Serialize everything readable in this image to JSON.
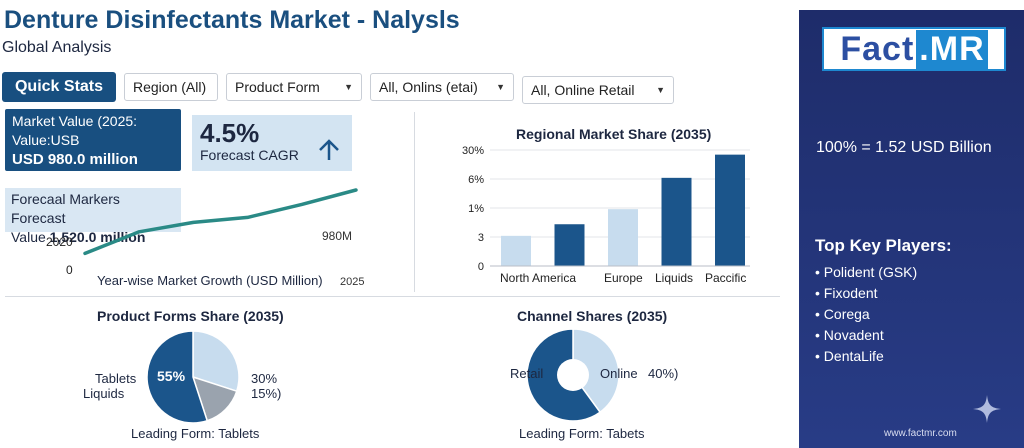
{
  "header": {
    "title": "Denture Disinfectants Market - Nalysls",
    "subtitle": "Global Analysis"
  },
  "toolbar": {
    "quick_stats": "Quick Stats",
    "filters": [
      {
        "label": "Region (All)",
        "has_caret": false
      },
      {
        "label": "Product Form",
        "has_caret": true
      },
      {
        "label": "All,  Onlins (etai)",
        "has_caret": true
      },
      {
        "label": "All,  Online  Retail",
        "has_caret": true
      }
    ]
  },
  "market_value": {
    "line1": "Market Value (2025:",
    "line2": "Value:USB",
    "value": "USD 980.0 million"
  },
  "cagr": {
    "value": "4.5%",
    "label": "Forecast CAGR",
    "icon": "arrow-up-icon"
  },
  "forecast": {
    "line1": "Forecaal Markers Forecast",
    "line2_prefix": "Value ",
    "value": "1,520.0 million"
  },
  "growth_chart": {
    "xlabel": "Year-wise Market Growth (USD Million)",
    "y_tick_top": "2020",
    "y_tick_bottom": "0",
    "x_tick_end": "2025",
    "annotation": "980M",
    "color": "#2a8a86",
    "points": [
      [
        0,
        0.12
      ],
      [
        0.2,
        0.42
      ],
      [
        0.4,
        0.55
      ],
      [
        0.6,
        0.62
      ],
      [
        0.8,
        0.8
      ],
      [
        1.0,
        1.0
      ]
    ]
  },
  "regional_chart": {
    "title": "Regional Market Share (2035)",
    "y_ticks": [
      "30%",
      "6%",
      "1%",
      "3",
      "0"
    ],
    "categories": [
      "North America",
      "Europe",
      "Liquids",
      "Paccific"
    ],
    "labels_visible": [
      "North America",
      "Europe",
      "Liquids",
      "Paccific"
    ]
  },
  "chart_data": {
    "type": "bar",
    "title": "Regional Market Share (2035)",
    "y_tick_labels": [
      "30%",
      "6%",
      "1%",
      "3",
      "0"
    ],
    "bars": [
      {
        "label": "North America",
        "level": 0.26,
        "color": "#c7dcee"
      },
      {
        "label": "",
        "level": 0.36,
        "color": "#1b558b"
      },
      {
        "label": "Europe",
        "level": 0.49,
        "color": "#c7dcee"
      },
      {
        "label": "Liquids",
        "level": 0.76,
        "color": "#1b558b"
      },
      {
        "label": "Paccific",
        "level": 0.96,
        "color": "#1b558b"
      }
    ]
  },
  "product_forms": {
    "title": "Product Forms Share (2035)",
    "center_label": "55%",
    "left_labels": [
      "Tablets",
      "Liquids"
    ],
    "right_labels": [
      "30%",
      "15%)"
    ],
    "footer": "Leading Form: Tablets",
    "slices": [
      {
        "name": "Tablets",
        "share": 0.55,
        "color": "#1b558b"
      },
      {
        "name": "Liquids",
        "share": 0.15,
        "color": "#9aa3ae"
      },
      {
        "name": "Other",
        "share": 0.3,
        "color": "#c7dcee"
      }
    ]
  },
  "channel_shares": {
    "title": "Channel Shares (2035)",
    "retail_label": "Retail",
    "online_label": "Online",
    "online_value": "40%)",
    "footer": "Leading Form: Tabets",
    "slices": [
      {
        "name": "Retail",
        "share": 0.6,
        "color": "#1b558b"
      },
      {
        "name": "Online",
        "share": 0.4,
        "color": "#c7dcee"
      }
    ]
  },
  "sidebar": {
    "logo_left": "Fact",
    "logo_right": ".MR",
    "scale_note": "100% = 1.52 USD Billion",
    "players_title": "Top Key Players:",
    "players": [
      "Polident (GSK)",
      "Fixodent",
      "Corega",
      "Novadent",
      "DentaLife"
    ],
    "url": "www.factmr.com",
    "icon": "sparkle-icon"
  }
}
